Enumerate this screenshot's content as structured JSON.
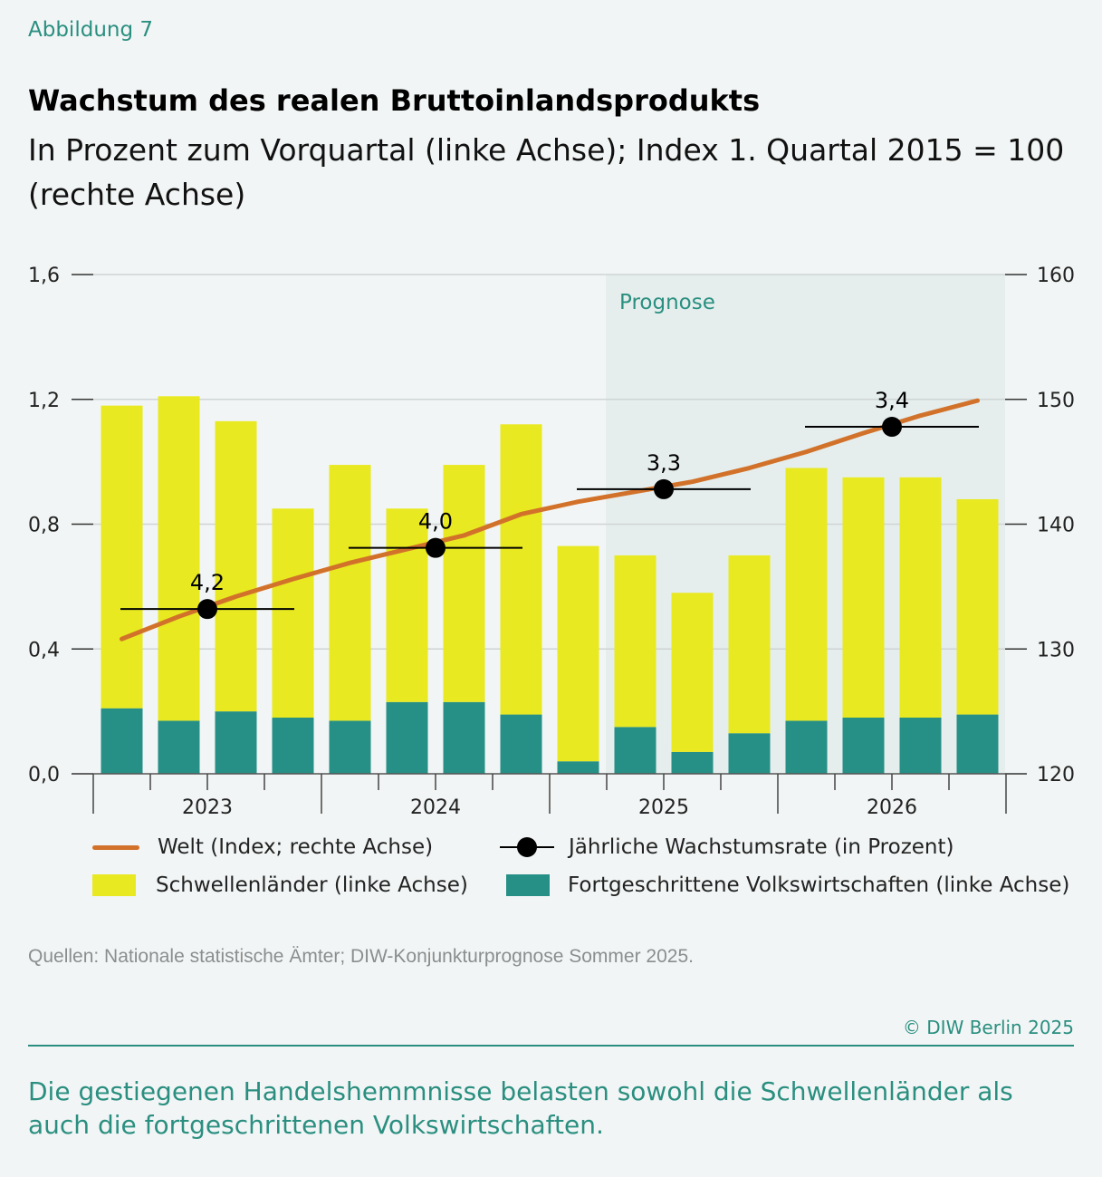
{
  "figure_label": "Abbildung 7",
  "title": "Wachstum des realen Bruttoinlandsprodukts",
  "subtitle": "In Prozent zum Vorquartal (linke Achse); Index 1. Quartal 2015 = 100 (rechte Achse)",
  "chart_data": {
    "type": "bar",
    "stacked": true,
    "title": "Wachstum des realen Bruttoinlandsprodukts",
    "categories": [
      "2023 Q1",
      "2023 Q2",
      "2023 Q3",
      "2023 Q4",
      "2024 Q1",
      "2024 Q2",
      "2024 Q3",
      "2024 Q4",
      "2025 Q1",
      "2025 Q2",
      "2025 Q3",
      "2025 Q4",
      "2026 Q1",
      "2026 Q2",
      "2026 Q3",
      "2026 Q4"
    ],
    "x_tick_labels": [
      "2023",
      "2024",
      "2025",
      "2026"
    ],
    "y_left": {
      "range": [
        0,
        1.6
      ],
      "ticks": [
        "0,0",
        "0,4",
        "0,8",
        "1,2",
        "1,6"
      ]
    },
    "y_right": {
      "range": [
        120,
        160
      ],
      "ticks": [
        "120",
        "130",
        "140",
        "150",
        "160"
      ]
    },
    "grid": true,
    "forecast_label": "Prognose",
    "forecast_start": "2025 Q2",
    "series": [
      {
        "name": "Fortgeschrittene Volkswirtschaften (linke Achse)",
        "type": "bar",
        "axis": "left",
        "color": "#268f86",
        "values": [
          0.21,
          0.17,
          0.2,
          0.18,
          0.17,
          0.23,
          0.23,
          0.19,
          0.04,
          0.15,
          0.07,
          0.13,
          0.17,
          0.18,
          0.18,
          0.19
        ]
      },
      {
        "name": "Schwellenländer (linke Achse)",
        "type": "bar",
        "axis": "left",
        "color": "#e8e920",
        "values": [
          0.97,
          1.04,
          0.93,
          0.67,
          0.82,
          0.62,
          0.76,
          0.93,
          0.69,
          0.55,
          0.51,
          0.57,
          0.81,
          0.77,
          0.77,
          0.69
        ]
      },
      {
        "name": "Welt (Index; rechte Achse)",
        "type": "line",
        "axis": "right",
        "color": "#d2722a",
        "values": [
          130.8,
          132.6,
          134.2,
          135.6,
          136.9,
          138.0,
          139.1,
          140.8,
          141.8,
          142.6,
          143.4,
          144.5,
          145.8,
          147.3,
          148.7,
          149.9
        ]
      },
      {
        "name": "Jährliche Wachstumsrate (in Prozent)",
        "type": "marker",
        "axis": "right",
        "color": "#000000",
        "years": [
          "2023",
          "2024",
          "2025",
          "2026"
        ],
        "labels": [
          "4,2",
          "4,0",
          "3,3",
          "3,4"
        ],
        "positions_index": [
          133.2,
          138.1,
          142.8,
          147.8
        ]
      }
    ],
    "legend_position": "bottom"
  },
  "legend": {
    "world": "Welt (Index; rechte Achse)",
    "annual": "Jährliche Wachstumsrate (in Prozent)",
    "emerging": "Schwellenländer (linke Achse)",
    "advanced": "Fortgeschrittene Volkswirtschaften (linke Achse)"
  },
  "source": "Quellen: Nationale statistische Ämter; DIW-Konjunkturprognose Sommer 2025.",
  "copyright": "© DIW Berlin 2025",
  "caption": "Die gestiegenen Handelshemmnisse belasten sowohl die Schwellenländer als auch die fortgeschrittenen Volkswirtschaften."
}
